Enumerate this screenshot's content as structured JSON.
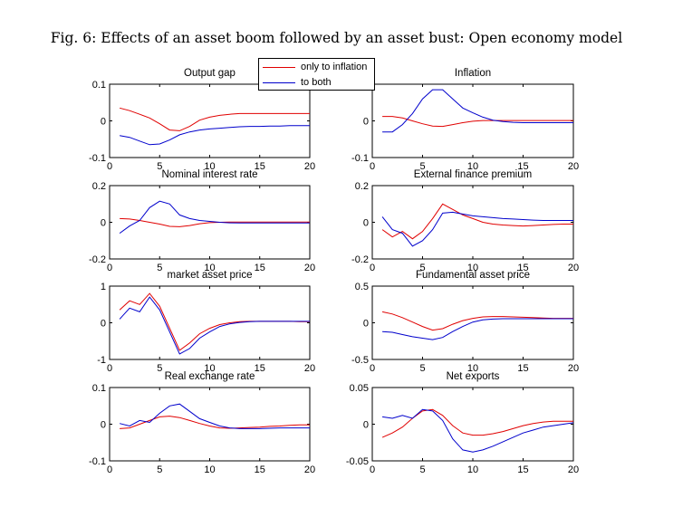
{
  "figure": {
    "title": "Fig. 6: Effects of an asset boom followed by an asset bust: Open economy model"
  },
  "colors": {
    "series_inflation": "#e00000",
    "series_both": "#0000cc"
  },
  "legend": {
    "entries": [
      {
        "label": "only to inflation",
        "color": "#e00000"
      },
      {
        "label": "to both",
        "color": "#0000cc"
      }
    ]
  },
  "chart_data": [
    {
      "type": "line",
      "title": "Output gap",
      "xlim": [
        0,
        20
      ],
      "ylim": [
        -0.1,
        0.1
      ],
      "xticks": [
        "0",
        "5",
        "10",
        "15",
        "20"
      ],
      "yticks": [
        "-0.1",
        "0",
        "0.1"
      ],
      "series": [
        {
          "name": "only to inflation",
          "color": "#e00000",
          "x": [
            1,
            2,
            3,
            4,
            5,
            6,
            7,
            8,
            9,
            10,
            11,
            12,
            13,
            14,
            15,
            16,
            17,
            18,
            19,
            20
          ],
          "values": [
            0.035,
            0.028,
            0.018,
            0.008,
            -0.008,
            -0.025,
            -0.027,
            -0.015,
            0.002,
            0.01,
            0.015,
            0.018,
            0.02,
            0.02,
            0.02,
            0.02,
            0.02,
            0.02,
            0.02,
            0.02
          ]
        },
        {
          "name": "to both",
          "color": "#0000cc",
          "x": [
            1,
            2,
            3,
            4,
            5,
            6,
            7,
            8,
            9,
            10,
            11,
            12,
            13,
            14,
            15,
            16,
            17,
            18,
            19,
            20
          ],
          "values": [
            -0.04,
            -0.045,
            -0.055,
            -0.065,
            -0.063,
            -0.052,
            -0.038,
            -0.03,
            -0.025,
            -0.022,
            -0.02,
            -0.018,
            -0.016,
            -0.015,
            -0.015,
            -0.014,
            -0.014,
            -0.013,
            -0.013,
            -0.013
          ]
        }
      ]
    },
    {
      "type": "line",
      "title": "Inflation",
      "xlim": [
        0,
        20
      ],
      "ylim": [
        -0.1,
        0.1
      ],
      "xticks": [
        "0",
        "5",
        "10",
        "15",
        "20"
      ],
      "yticks": [
        "-0.1",
        "0",
        "0.1"
      ],
      "series": [
        {
          "name": "only to inflation",
          "color": "#e00000",
          "x": [
            1,
            2,
            3,
            4,
            5,
            6,
            7,
            8,
            9,
            10,
            11,
            12,
            13,
            14,
            15,
            16,
            17,
            18,
            19,
            20
          ],
          "values": [
            0.012,
            0.012,
            0.008,
            0.0,
            -0.008,
            -0.014,
            -0.015,
            -0.01,
            -0.005,
            -0.001,
            0.001,
            0.001,
            0.001,
            0.001,
            0.001,
            0.001,
            0.001,
            0.001,
            0.001,
            0.001
          ]
        },
        {
          "name": "to both",
          "color": "#0000cc",
          "x": [
            1,
            2,
            3,
            4,
            5,
            6,
            7,
            8,
            9,
            10,
            11,
            12,
            13,
            14,
            15,
            16,
            17,
            18,
            19,
            20
          ],
          "values": [
            -0.03,
            -0.03,
            -0.01,
            0.02,
            0.06,
            0.085,
            0.085,
            0.06,
            0.035,
            0.022,
            0.01,
            0.002,
            -0.002,
            -0.004,
            -0.005,
            -0.005,
            -0.005,
            -0.005,
            -0.005,
            -0.005
          ]
        }
      ]
    },
    {
      "type": "line",
      "title": "Nominal interest rate",
      "xlim": [
        0,
        20
      ],
      "ylim": [
        -0.2,
        0.2
      ],
      "xticks": [
        "0",
        "5",
        "10",
        "15",
        "20"
      ],
      "yticks": [
        "-0.2",
        "0",
        "0.2"
      ],
      "series": [
        {
          "name": "only to inflation",
          "color": "#e00000",
          "x": [
            1,
            2,
            3,
            4,
            5,
            6,
            7,
            8,
            9,
            10,
            11,
            12,
            13,
            14,
            15,
            16,
            17,
            18,
            19,
            20
          ],
          "values": [
            0.02,
            0.018,
            0.01,
            0.0,
            -0.01,
            -0.022,
            -0.024,
            -0.018,
            -0.008,
            -0.002,
            0.0,
            0.001,
            0.001,
            0.001,
            0.001,
            0.001,
            0.001,
            0.001,
            0.001,
            0.001
          ]
        },
        {
          "name": "to both",
          "color": "#0000cc",
          "x": [
            1,
            2,
            3,
            4,
            5,
            6,
            7,
            8,
            9,
            10,
            11,
            12,
            13,
            14,
            15,
            16,
            17,
            18,
            19,
            20
          ],
          "values": [
            -0.06,
            -0.02,
            0.01,
            0.08,
            0.115,
            0.1,
            0.04,
            0.02,
            0.01,
            0.005,
            0.0,
            -0.003,
            -0.004,
            -0.004,
            -0.004,
            -0.004,
            -0.004,
            -0.004,
            -0.004,
            -0.004
          ]
        }
      ]
    },
    {
      "type": "line",
      "title": "External finance premium",
      "xlim": [
        0,
        20
      ],
      "ylim": [
        -0.2,
        0.2
      ],
      "xticks": [
        "0",
        "5",
        "10",
        "15",
        "20"
      ],
      "yticks": [
        "-0.2",
        "0",
        "0.2"
      ],
      "series": [
        {
          "name": "only to inflation",
          "color": "#e00000",
          "x": [
            1,
            2,
            3,
            4,
            5,
            6,
            7,
            8,
            9,
            10,
            11,
            12,
            13,
            14,
            15,
            16,
            17,
            18,
            19,
            20
          ],
          "values": [
            -0.04,
            -0.08,
            -0.05,
            -0.09,
            -0.05,
            0.02,
            0.1,
            0.07,
            0.04,
            0.02,
            0.0,
            -0.01,
            -0.015,
            -0.018,
            -0.02,
            -0.018,
            -0.015,
            -0.012,
            -0.01,
            -0.01
          ]
        },
        {
          "name": "to both",
          "color": "#0000cc",
          "x": [
            1,
            2,
            3,
            4,
            5,
            6,
            7,
            8,
            9,
            10,
            11,
            12,
            13,
            14,
            15,
            16,
            17,
            18,
            19,
            20
          ],
          "values": [
            0.03,
            -0.04,
            -0.06,
            -0.13,
            -0.1,
            -0.04,
            0.05,
            0.055,
            0.045,
            0.035,
            0.03,
            0.025,
            0.02,
            0.018,
            0.015,
            0.012,
            0.01,
            0.01,
            0.01,
            0.01
          ]
        }
      ]
    },
    {
      "type": "line",
      "title": "market asset price",
      "xlim": [
        0,
        20
      ],
      "ylim": [
        -1,
        1
      ],
      "xticks": [
        "0",
        "5",
        "10",
        "15",
        "20"
      ],
      "yticks": [
        "-1",
        "0",
        "1"
      ],
      "series": [
        {
          "name": "only to inflation",
          "color": "#e00000",
          "x": [
            1,
            2,
            3,
            4,
            5,
            6,
            7,
            8,
            9,
            10,
            11,
            12,
            13,
            14,
            15,
            16,
            17,
            18,
            19,
            20
          ],
          "values": [
            0.35,
            0.6,
            0.5,
            0.8,
            0.45,
            -0.15,
            -0.75,
            -0.55,
            -0.3,
            -0.15,
            -0.05,
            0.0,
            0.03,
            0.04,
            0.04,
            0.04,
            0.04,
            0.04,
            0.03,
            0.03
          ]
        },
        {
          "name": "to both",
          "color": "#0000cc",
          "x": [
            1,
            2,
            3,
            4,
            5,
            6,
            7,
            8,
            9,
            10,
            11,
            12,
            13,
            14,
            15,
            16,
            17,
            18,
            19,
            20
          ],
          "values": [
            0.1,
            0.4,
            0.3,
            0.7,
            0.35,
            -0.25,
            -0.85,
            -0.7,
            -0.42,
            -0.25,
            -0.1,
            -0.03,
            0.01,
            0.03,
            0.04,
            0.04,
            0.04,
            0.04,
            0.04,
            0.04
          ]
        }
      ]
    },
    {
      "type": "line",
      "title": "Fundamental asset price",
      "xlim": [
        0,
        20
      ],
      "ylim": [
        -0.5,
        0.5
      ],
      "xticks": [
        "0",
        "5",
        "10",
        "15",
        "20"
      ],
      "yticks": [
        "-0.5",
        "0",
        "0.5"
      ],
      "series": [
        {
          "name": "only to inflation",
          "color": "#e00000",
          "x": [
            1,
            2,
            3,
            4,
            5,
            6,
            7,
            8,
            9,
            10,
            11,
            12,
            13,
            14,
            15,
            16,
            17,
            18,
            19,
            20
          ],
          "values": [
            0.15,
            0.12,
            0.07,
            0.01,
            -0.05,
            -0.1,
            -0.08,
            -0.02,
            0.03,
            0.06,
            0.08,
            0.085,
            0.085,
            0.08,
            0.075,
            0.07,
            0.065,
            0.06,
            0.06,
            0.06
          ]
        },
        {
          "name": "to both",
          "color": "#0000cc",
          "x": [
            1,
            2,
            3,
            4,
            5,
            6,
            7,
            8,
            9,
            10,
            11,
            12,
            13,
            14,
            15,
            16,
            17,
            18,
            19,
            20
          ],
          "values": [
            -0.12,
            -0.13,
            -0.16,
            -0.19,
            -0.21,
            -0.23,
            -0.2,
            -0.12,
            -0.05,
            0.01,
            0.04,
            0.05,
            0.055,
            0.055,
            0.055,
            0.055,
            0.055,
            0.055,
            0.055,
            0.055
          ]
        }
      ]
    },
    {
      "type": "line",
      "title": "Real exchange rate",
      "xlim": [
        0,
        20
      ],
      "ylim": [
        -0.1,
        0.1
      ],
      "xticks": [
        "0",
        "5",
        "10",
        "15",
        "20"
      ],
      "yticks": [
        "-0.1",
        "0",
        "0.1"
      ],
      "series": [
        {
          "name": "only to inflation",
          "color": "#e00000",
          "x": [
            1,
            2,
            3,
            4,
            5,
            6,
            7,
            8,
            9,
            10,
            11,
            12,
            13,
            14,
            15,
            16,
            17,
            18,
            19,
            20
          ],
          "values": [
            -0.012,
            -0.01,
            0.0,
            0.01,
            0.02,
            0.022,
            0.018,
            0.01,
            0.002,
            -0.005,
            -0.01,
            -0.011,
            -0.01,
            -0.009,
            -0.008,
            -0.006,
            -0.005,
            -0.003,
            -0.002,
            -0.002
          ]
        },
        {
          "name": "to both",
          "color": "#0000cc",
          "x": [
            1,
            2,
            3,
            4,
            5,
            6,
            7,
            8,
            9,
            10,
            11,
            12,
            13,
            14,
            15,
            16,
            17,
            18,
            19,
            20
          ],
          "values": [
            0.002,
            -0.005,
            0.01,
            0.005,
            0.03,
            0.05,
            0.055,
            0.035,
            0.015,
            0.005,
            -0.005,
            -0.01,
            -0.012,
            -0.012,
            -0.012,
            -0.011,
            -0.01,
            -0.01,
            -0.01,
            -0.01
          ]
        }
      ]
    },
    {
      "type": "line",
      "title": "Net exports",
      "xlim": [
        0,
        20
      ],
      "ylim": [
        -0.05,
        0.05
      ],
      "xticks": [
        "0",
        "5",
        "10",
        "15",
        "20"
      ],
      "yticks": [
        "-0.05",
        "0",
        "0.05"
      ],
      "series": [
        {
          "name": "only to inflation",
          "color": "#e00000",
          "x": [
            1,
            2,
            3,
            4,
            5,
            6,
            7,
            8,
            9,
            10,
            11,
            12,
            13,
            14,
            15,
            16,
            17,
            18,
            19,
            20
          ],
          "values": [
            -0.018,
            -0.012,
            -0.004,
            0.008,
            0.018,
            0.02,
            0.012,
            -0.002,
            -0.012,
            -0.015,
            -0.015,
            -0.013,
            -0.01,
            -0.006,
            -0.002,
            0.001,
            0.003,
            0.004,
            0.004,
            0.004
          ]
        },
        {
          "name": "to both",
          "color": "#0000cc",
          "x": [
            1,
            2,
            3,
            4,
            5,
            6,
            7,
            8,
            9,
            10,
            11,
            12,
            13,
            14,
            15,
            16,
            17,
            18,
            19,
            20
          ],
          "values": [
            0.01,
            0.008,
            0.012,
            0.008,
            0.02,
            0.018,
            0.005,
            -0.02,
            -0.035,
            -0.038,
            -0.035,
            -0.03,
            -0.024,
            -0.018,
            -0.012,
            -0.008,
            -0.004,
            -0.002,
            0.0,
            0.002
          ]
        }
      ]
    }
  ]
}
